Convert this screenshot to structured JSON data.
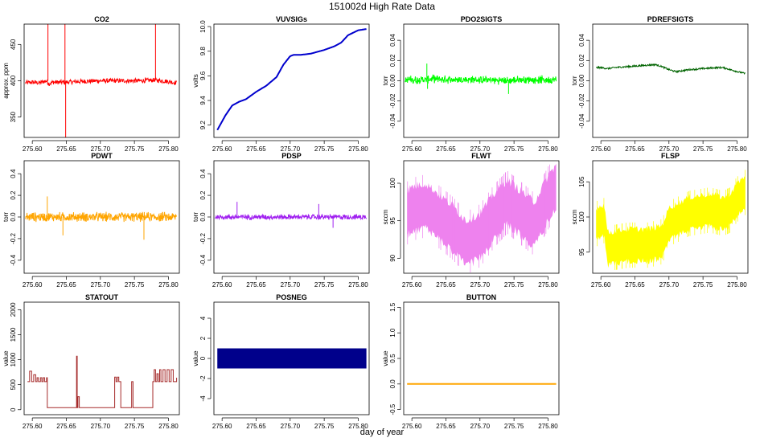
{
  "figure": {
    "title": "151002d   High Rate Data",
    "xlabel": "day of year"
  },
  "chart_data": [
    {
      "type": "line",
      "title": "CO2",
      "ylabel": "approx. ppm",
      "color": "#ff0000",
      "xlim": [
        275.588,
        275.816
      ],
      "ylim": [
        322,
        478
      ],
      "xticks": [
        275.6,
        275.65,
        275.7,
        275.75,
        275.8
      ],
      "xtick_labels": [
        "275.60",
        "275.65",
        "275.70",
        "275.75",
        "275.80"
      ],
      "yticks": [
        350,
        400,
        450
      ],
      "ytick_labels": [
        "350",
        "400",
        "450"
      ],
      "style": "noisy",
      "noise": 3,
      "x": [
        275.59,
        275.6,
        275.61,
        275.62,
        275.625,
        275.63,
        275.65,
        275.67,
        275.7,
        275.72,
        275.74,
        275.76,
        275.78,
        275.8,
        275.812
      ],
      "y": [
        397,
        398,
        397,
        400,
        396,
        398,
        398,
        399,
        400,
        400,
        400,
        400,
        401,
        399,
        397
      ],
      "spikes": [
        {
          "x": 275.623,
          "from": 400,
          "to": 478
        },
        {
          "x": 275.648,
          "from": 400,
          "to": 478
        },
        {
          "x": 275.649,
          "from": 400,
          "to": 322
        },
        {
          "x": 275.781,
          "from": 401,
          "to": 478
        }
      ]
    },
    {
      "type": "line",
      "title": "VUVSIGs",
      "ylabel": "volts",
      "color": "#0000cd",
      "xlim": [
        275.588,
        275.816
      ],
      "ylim": [
        9.1,
        10.02
      ],
      "xticks": [
        275.6,
        275.65,
        275.7,
        275.75,
        275.8
      ],
      "xtick_labels": [
        "275.60",
        "275.65",
        "275.70",
        "275.75",
        "275.80"
      ],
      "yticks": [
        9.2,
        9.4,
        9.6,
        9.8,
        10.0
      ],
      "ytick_labels": [
        "9.2",
        "9.4",
        "9.6",
        "9.8",
        "10.0"
      ],
      "style": "smooth",
      "noise": 0,
      "x": [
        275.593,
        275.605,
        275.615,
        275.625,
        275.635,
        275.65,
        275.665,
        275.68,
        275.69,
        275.7,
        275.705,
        275.715,
        275.73,
        275.75,
        275.765,
        275.775,
        275.785,
        275.8,
        275.812
      ],
      "y": [
        9.16,
        9.28,
        9.36,
        9.39,
        9.41,
        9.47,
        9.52,
        9.59,
        9.69,
        9.76,
        9.77,
        9.77,
        9.78,
        9.81,
        9.84,
        9.87,
        9.93,
        9.97,
        9.98
      ]
    },
    {
      "type": "line",
      "title": "PDO2SIGTS",
      "ylabel": "torr",
      "color": "#00ff00",
      "xlim": [
        275.588,
        275.816
      ],
      "ylim": [
        -0.056,
        0.056
      ],
      "xticks": [
        275.6,
        275.65,
        275.7,
        275.75,
        275.8
      ],
      "xtick_labels": [
        "275.60",
        "275.65",
        "275.70",
        "275.75",
        "275.80"
      ],
      "yticks": [
        -0.04,
        -0.02,
        0.0,
        0.02,
        0.04
      ],
      "ytick_labels": [
        "-0.04",
        "-0.02",
        "0.00",
        "0.02",
        "0.04"
      ],
      "style": "band",
      "noise": 0.003,
      "x": [
        275.59,
        275.62,
        275.63,
        275.66,
        275.7,
        275.74,
        275.76,
        275.78,
        275.812
      ],
      "y": [
        0.001,
        0.001,
        0.002,
        0.001,
        0.001,
        0.0,
        0.001,
        0.001,
        0.001
      ],
      "spikes": [
        {
          "x": 275.622,
          "from": 0.0,
          "to": 0.017
        },
        {
          "x": 275.623,
          "from": 0.0,
          "to": -0.008
        },
        {
          "x": 275.742,
          "from": 0.0,
          "to": -0.013
        }
      ]
    },
    {
      "type": "line",
      "title": "PDREFSIGTS",
      "ylabel": "torr",
      "color": "#006400",
      "xlim": [
        275.588,
        275.816
      ],
      "ylim": [
        -0.056,
        0.056
      ],
      "xticks": [
        275.6,
        275.65,
        275.7,
        275.75,
        275.8
      ],
      "xtick_labels": [
        "275.60",
        "275.65",
        "275.70",
        "275.75",
        "275.80"
      ],
      "yticks": [
        -0.04,
        -0.02,
        0.0,
        0.02,
        0.04
      ],
      "ytick_labels": [
        "-0.04",
        "-0.02",
        "0.00",
        "0.02",
        "0.04"
      ],
      "style": "noisy",
      "noise": 0.0008,
      "x": [
        275.593,
        275.6,
        275.61,
        275.62,
        275.64,
        275.66,
        275.68,
        275.69,
        275.7,
        275.71,
        275.73,
        275.75,
        275.77,
        275.78,
        275.79,
        275.812
      ],
      "y": [
        0.013,
        0.013,
        0.012,
        0.013,
        0.014,
        0.015,
        0.016,
        0.014,
        0.011,
        0.009,
        0.011,
        0.012,
        0.013,
        0.013,
        0.011,
        0.007
      ]
    },
    {
      "type": "line",
      "title": "PDWT",
      "ylabel": "torr",
      "color": "#ffa500",
      "xlim": [
        275.588,
        275.816
      ],
      "ylim": [
        -0.52,
        0.52
      ],
      "xticks": [
        275.6,
        275.65,
        275.7,
        275.75,
        275.8
      ],
      "xtick_labels": [
        "275.60",
        "275.65",
        "275.70",
        "275.75",
        "275.80"
      ],
      "yticks": [
        -0.4,
        -0.2,
        0.0,
        0.2,
        0.4
      ],
      "ytick_labels": [
        "-0.4",
        "-0.2",
        "0.0",
        "0.2",
        "0.4"
      ],
      "style": "band",
      "noise": 0.035,
      "x": [
        275.59,
        275.6,
        275.62,
        275.7,
        275.76,
        275.78,
        275.785,
        275.812
      ],
      "y": [
        0.0,
        0.0,
        0.0,
        0.0,
        0.0,
        0.0,
        0.0,
        0.0
      ],
      "spikes": [
        {
          "x": 275.622,
          "from": 0.0,
          "to": 0.19
        },
        {
          "x": 275.764,
          "from": 0.0,
          "to": -0.21
        },
        {
          "x": 275.645,
          "from": 0.0,
          "to": -0.17
        }
      ]
    },
    {
      "type": "line",
      "title": "PDSP",
      "ylabel": "torr",
      "color": "#a020f0",
      "xlim": [
        275.588,
        275.816
      ],
      "ylim": [
        -0.52,
        0.52
      ],
      "xticks": [
        275.6,
        275.65,
        275.7,
        275.75,
        275.8
      ],
      "xtick_labels": [
        "275.60",
        "275.65",
        "275.70",
        "275.75",
        "275.80"
      ],
      "yticks": [
        -0.4,
        -0.2,
        0.0,
        0.2,
        0.4
      ],
      "ytick_labels": [
        "-0.4",
        "-0.2",
        "0.0",
        "0.2",
        "0.4"
      ],
      "style": "band",
      "noise": 0.02,
      "x": [
        275.59,
        275.62,
        275.7,
        275.78,
        275.812
      ],
      "y": [
        0.0,
        0.0,
        0.0,
        0.0,
        0.0
      ],
      "spikes": [
        {
          "x": 275.622,
          "from": 0.0,
          "to": 0.14
        },
        {
          "x": 275.742,
          "from": 0.0,
          "to": 0.12
        },
        {
          "x": 275.763,
          "from": 0.0,
          "to": -0.1
        }
      ]
    },
    {
      "type": "line",
      "title": "FLWT",
      "ylabel": "sccm",
      "color": "#ee82ee",
      "xlim": [
        275.588,
        275.816
      ],
      "ylim": [
        88,
        103
      ],
      "xticks": [
        275.6,
        275.65,
        275.7,
        275.75,
        275.8
      ],
      "xtick_labels": [
        "275.60",
        "275.65",
        "275.70",
        "275.75",
        "275.80"
      ],
      "yticks": [
        90,
        95,
        100
      ],
      "ytick_labels": [
        "90",
        "95",
        "100"
      ],
      "style": "filled",
      "halfwidth": 3,
      "x": [
        275.593,
        275.6,
        275.62,
        275.64,
        275.66,
        275.68,
        275.7,
        275.72,
        275.74,
        275.76,
        275.78,
        275.8,
        275.812
      ],
      "y": [
        96,
        96.5,
        97,
        95.5,
        94,
        92,
        93,
        95.5,
        97.5,
        96,
        94.5,
        98,
        99.5
      ]
    },
    {
      "type": "line",
      "title": "FLSP",
      "ylabel": "sccm",
      "color": "#ffff00",
      "xlim": [
        275.588,
        275.816
      ],
      "ylim": [
        92,
        108
      ],
      "xticks": [
        275.6,
        275.65,
        275.7,
        275.75,
        275.8
      ],
      "xtick_labels": [
        "275.60",
        "275.65",
        "275.70",
        "275.75",
        "275.80"
      ],
      "yticks": [
        95,
        100,
        105
      ],
      "ytick_labels": [
        "95",
        "100",
        "105"
      ],
      "style": "filled",
      "halfwidth": 2.3,
      "x": [
        275.593,
        275.605,
        275.61,
        275.64,
        275.67,
        275.69,
        275.7,
        275.73,
        275.76,
        275.78,
        275.79,
        275.8,
        275.812
      ],
      "y": [
        99,
        99.5,
        95.5,
        96,
        96,
        96.5,
        99,
        100.5,
        101,
        100.5,
        101,
        102.5,
        103.5
      ]
    },
    {
      "type": "line",
      "title": "STATOUT",
      "ylabel": "value",
      "color": "#a52a2a",
      "xlim": [
        275.588,
        275.816
      ],
      "ylim": [
        -100,
        2150
      ],
      "xticks": [
        275.6,
        275.65,
        275.7,
        275.75,
        275.8
      ],
      "xtick_labels": [
        "275.60",
        "275.65",
        "275.70",
        "275.75",
        "275.80"
      ],
      "yticks": [
        0,
        500,
        1000,
        1500,
        2000
      ],
      "ytick_labels": [
        "0",
        "500",
        "1000",
        "1500",
        "2000"
      ],
      "style": "step",
      "x": [
        275.593,
        275.596,
        275.599,
        275.602,
        275.605,
        275.607,
        275.609,
        275.612,
        275.614,
        275.616,
        275.618,
        275.621,
        275.622,
        275.664,
        275.665,
        275.666,
        275.667,
        275.669,
        275.67,
        275.72,
        275.721,
        275.723,
        275.725,
        275.727,
        275.73,
        275.745,
        275.746,
        275.748,
        275.77,
        275.775,
        275.777,
        275.779,
        275.781,
        275.783,
        275.785,
        275.787,
        275.789,
        275.792,
        275.795,
        275.798,
        275.801,
        275.804,
        275.807,
        275.812
      ],
      "y": [
        560,
        770,
        560,
        700,
        560,
        640,
        560,
        640,
        560,
        640,
        560,
        640,
        40,
        40,
        1070,
        40,
        260,
        40,
        40,
        40,
        650,
        560,
        650,
        560,
        40,
        40,
        560,
        40,
        40,
        40,
        560,
        800,
        560,
        720,
        560,
        800,
        560,
        800,
        560,
        800,
        560,
        800,
        560,
        640
      ]
    },
    {
      "type": "bar",
      "title": "POSNEG",
      "ylabel": "value",
      "color": "#00008b",
      "xlim": [
        275.588,
        275.816
      ],
      "ylim": [
        -5.6,
        5.6
      ],
      "xticks": [
        275.6,
        275.65,
        275.7,
        275.75,
        275.8
      ],
      "xtick_labels": [
        "275.60",
        "275.65",
        "275.70",
        "275.75",
        "275.80"
      ],
      "yticks": [
        -4,
        -2,
        0,
        2,
        4
      ],
      "ytick_labels": [
        "-4",
        "-2",
        "0",
        "2",
        "4"
      ],
      "x": [
        275.593,
        275.812
      ],
      "ymin": -1,
      "ymax": 1
    },
    {
      "type": "line",
      "title": "BUTTON",
      "ylabel": "value",
      "color": "#ffa500",
      "xlim": [
        275.588,
        275.816
      ],
      "ylim": [
        -0.6,
        1.6
      ],
      "xticks": [
        275.6,
        275.65,
        275.7,
        275.75,
        275.8
      ],
      "xtick_labels": [
        "275.60",
        "275.65",
        "275.70",
        "275.75",
        "275.80"
      ],
      "yticks": [
        -0.5,
        0.0,
        0.5,
        1.0,
        1.5
      ],
      "ytick_labels": [
        "-0.5",
        "0.0",
        "0.5",
        "1.0",
        "1.5"
      ],
      "style": "smooth",
      "noise": 0,
      "x": [
        275.593,
        275.812
      ],
      "y": [
        0,
        0
      ]
    }
  ]
}
